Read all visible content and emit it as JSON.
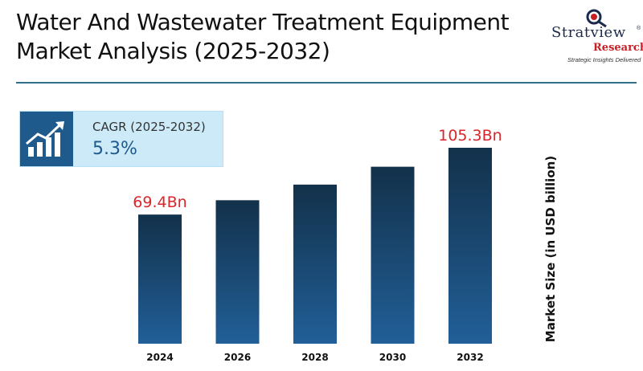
{
  "header": {
    "title_line1": "Water And Wastewater Treatment Equipment",
    "title_line2": "Market Analysis (2025-2032)"
  },
  "logo": {
    "name": "Stratview",
    "reg": "®",
    "sub": "Research",
    "tagline": "Strategic Insights Delivered"
  },
  "cagr": {
    "icon": "growth-chart-icon",
    "label": "CAGR (2025-2032)",
    "value": "5.3%"
  },
  "colors": {
    "bar_top": "#13314a",
    "bar_bottom": "#215f98",
    "label_red": "#d9262b",
    "accent": "#1e5a8c"
  },
  "chart_data": {
    "type": "bar",
    "categories": [
      "2024",
      "2026",
      "2028",
      "2030",
      "2032"
    ],
    "values": [
      69.4,
      77.1,
      85.5,
      95.1,
      105.3
    ],
    "data_labels": [
      "69.4Bn",
      "",
      "",
      "",
      "105.3Bn"
    ],
    "ylabel": "Market Size (in USD billion)",
    "ylim": [
      0,
      105.3
    ],
    "grid": false,
    "legend": "none"
  }
}
